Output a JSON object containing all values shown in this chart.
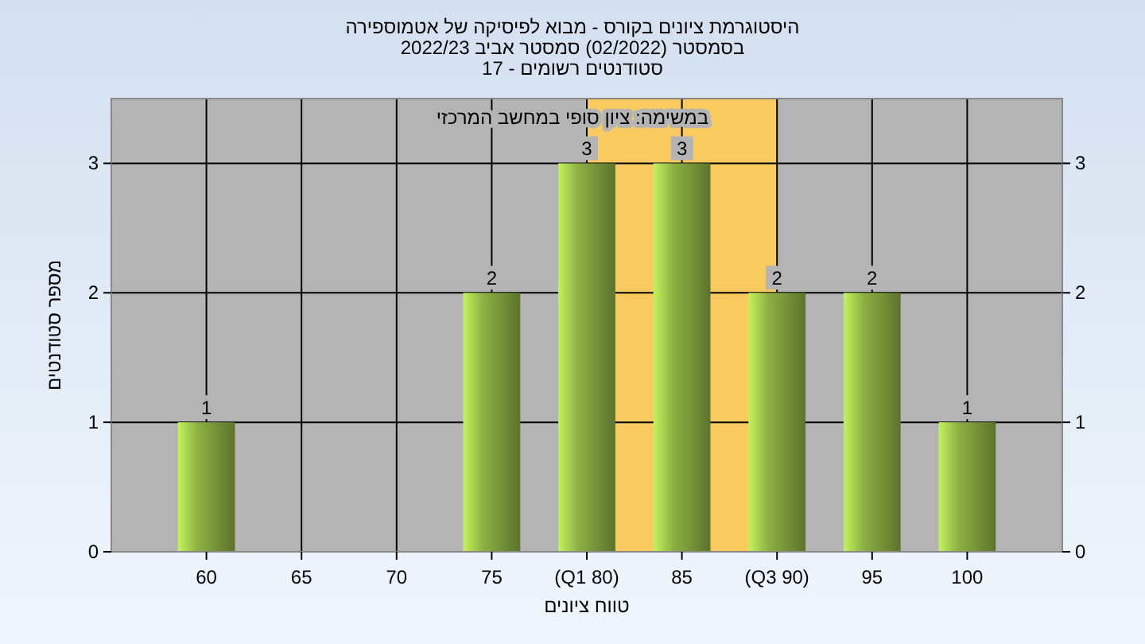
{
  "chart_data": {
    "type": "bar",
    "title": "היסטוגרמת ציונים בקורס - מבוא לפיסיקה של אטמוספירה",
    "subtitle": "בסמסטר  (02/2022)  סמסטר אביב 2022/23\nסטודנטים רשומים - 17",
    "xlabel": "טווח ציונים",
    "ylabel": "מספר סטודנטים",
    "annotations": [
      "במשימה: ציון סופי במחשב המרכזי"
    ],
    "categories": [
      "60",
      "65",
      "70",
      "75",
      "(Q1 80)",
      "85",
      "(Q3 90)",
      "95",
      "100"
    ],
    "values": [
      1,
      0,
      0,
      2,
      3,
      3,
      2,
      2,
      1
    ],
    "value_labels": [
      "1",
      null,
      null,
      "2",
      "3",
      "3",
      "2",
      "2",
      "1"
    ],
    "color": "#8db043",
    "ylim": [
      0,
      3.5
    ],
    "yticks": [
      0,
      1,
      2,
      3
    ],
    "y2lim": [
      0,
      3.5
    ],
    "y2ticks": [
      0,
      1,
      2,
      3
    ],
    "bands": [
      {
        "axis": "x",
        "from": "(Q1 80)",
        "to": "(Q3 90)",
        "color": "#ffcc55"
      }
    ],
    "grid": true
  }
}
